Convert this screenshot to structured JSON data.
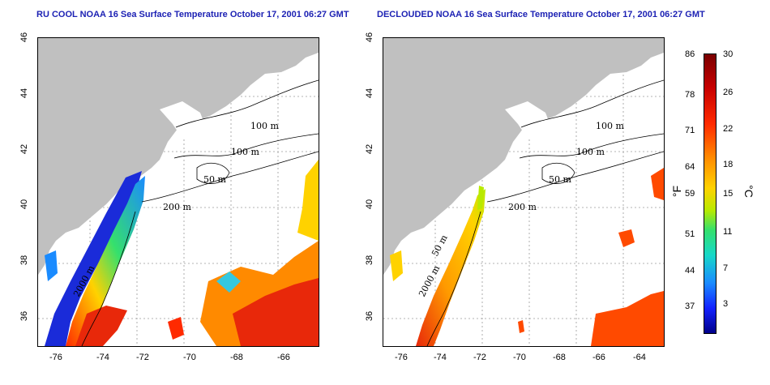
{
  "titles": {
    "left": "RU COOL NOAA 16 Sea Surface Temperature October 17, 2001 06:27 GMT",
    "right": "DECLOUDED NOAA 16 Sea Surface Temperature October 17, 2001 06:27 GMT"
  },
  "axes": {
    "x_ticks": [
      "-76",
      "-74",
      "-72",
      "-70",
      "-68",
      "-66",
      "-64"
    ],
    "y_ticks": [
      "46",
      "44",
      "42",
      "40",
      "38",
      "36"
    ]
  },
  "contour_labels": [
    "100 m",
    "100 m",
    "50 m",
    "200 m",
    "2000 m",
    "50 m"
  ],
  "colorbar": {
    "fahrenheit_ticks": [
      "86",
      "78",
      "71",
      "64",
      "59",
      "51",
      "44",
      "37"
    ],
    "celsius_ticks": [
      "30",
      "26",
      "22",
      "18",
      "15",
      "11",
      "7",
      "3"
    ],
    "unit_f": "°F",
    "unit_c": "°C"
  },
  "colors": {
    "land": "#c0c0c0",
    "title": "#1d22b4",
    "warm": "#e8280a",
    "cold": "#1a2bd9"
  }
}
